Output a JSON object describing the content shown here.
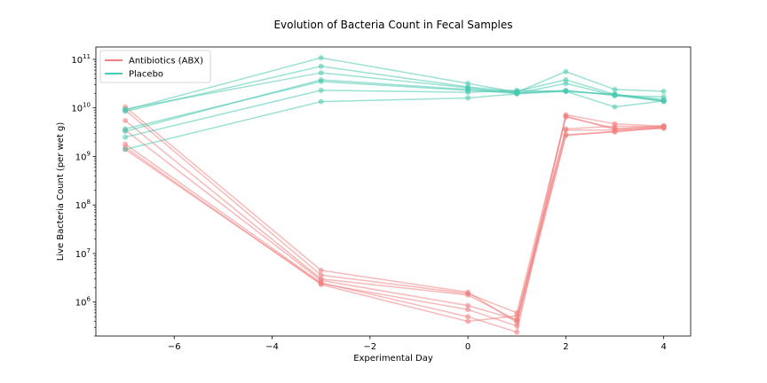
{
  "chart_data": {
    "type": "line",
    "title": "Evolution of Bacteria Count in Fecal Samples",
    "xlabel": "Experimental Day",
    "ylabel": "Live Bacteria Count (per wet g)",
    "xlim": [
      -7.6,
      4.55
    ],
    "ylim": [
      200000,
      180000000000
    ],
    "yscale": "log",
    "x_ticks": [
      {
        "value": -6,
        "label": "−6"
      },
      {
        "value": -4,
        "label": "−4"
      },
      {
        "value": -2,
        "label": "−2"
      },
      {
        "value": 0,
        "label": "0"
      },
      {
        "value": 2,
        "label": "2"
      },
      {
        "value": 4,
        "label": "4"
      }
    ],
    "y_ticks": [
      {
        "value": 1000000,
        "base": "10",
        "exp": "6"
      },
      {
        "value": 10000000,
        "base": "10",
        "exp": "7"
      },
      {
        "value": 100000000,
        "base": "10",
        "exp": "8"
      },
      {
        "value": 1000000000,
        "base": "10",
        "exp": "9"
      },
      {
        "value": 10000000000,
        "base": "10",
        "exp": "10"
      },
      {
        "value": 100000000000,
        "base": "10",
        "exp": "11"
      }
    ],
    "grid": false,
    "legend": {
      "placement": "top-left",
      "entries": [
        {
          "label": "Antibiotics (ABX)",
          "color": "#f08080"
        },
        {
          "label": "Placebo",
          "color": "#48c9b0"
        }
      ]
    },
    "x": [
      -7,
      -3,
      0,
      1,
      2,
      3,
      4
    ],
    "series": [
      {
        "group": "Antibiotics (ABX)",
        "color": "#f08080",
        "values": [
          10500000000,
          4500000,
          1600000,
          380000,
          7200000000,
          4700000000,
          4200000000
        ]
      },
      {
        "group": "Antibiotics (ABX)",
        "color": "#f08080",
        "values": [
          9000000000,
          3600000,
          1500000,
          600000,
          6500000000,
          3800000000,
          4000000000
        ]
      },
      {
        "group": "Antibiotics (ABX)",
        "color": "#f08080",
        "values": [
          5500000000,
          3000000,
          1400000,
          420000,
          3700000000,
          4200000000,
          4100000000
        ]
      },
      {
        "group": "Antibiotics (ABX)",
        "color": "#f08080",
        "values": [
          3500000000,
          2800000,
          850000,
          430000,
          2800000000,
          3200000000,
          3900000000
        ]
      },
      {
        "group": "Antibiotics (ABX)",
        "color": "#f08080",
        "values": [
          1800000000,
          2500000,
          500000,
          240000,
          6800000000,
          3600000000,
          4300000000
        ]
      },
      {
        "group": "Antibiotics (ABX)",
        "color": "#f08080",
        "values": [
          1550000000,
          2300000,
          400000,
          520000,
          3500000000,
          3500000000,
          3800000000
        ]
      },
      {
        "group": "Antibiotics (ABX)",
        "color": "#f08080",
        "values": [
          1400000000,
          2400000,
          700000,
          320000,
          2700000000,
          3300000000,
          4000000000
        ]
      },
      {
        "group": "Placebo",
        "color": "#48c9b0",
        "values": [
          9000000000,
          108000000000,
          32000000000,
          21000000000,
          56000000000,
          24000000000,
          22000000000
        ]
      },
      {
        "group": "Placebo",
        "color": "#48c9b0",
        "values": [
          8500000000,
          72000000000,
          27000000000,
          22000000000,
          38000000000,
          19000000000,
          15000000000
        ]
      },
      {
        "group": "Placebo",
        "color": "#48c9b0",
        "values": [
          9500000000,
          53000000000,
          26000000000,
          20000000000,
          32000000000,
          18000000000,
          14000000000
        ]
      },
      {
        "group": "Placebo",
        "color": "#48c9b0",
        "values": [
          3300000000,
          38000000000,
          24000000000,
          21000000000,
          22000000000,
          10500000000,
          14000000000
        ]
      },
      {
        "group": "Placebo",
        "color": "#48c9b0",
        "values": [
          3700000000,
          35000000000,
          23000000000,
          20000000000,
          23000000000,
          18000000000,
          17000000000
        ]
      },
      {
        "group": "Placebo",
        "color": "#48c9b0",
        "values": [
          2500000000,
          23000000000,
          21000000000,
          23000000000,
          22000000000,
          19000000000,
          13500000000
        ]
      },
      {
        "group": "Placebo",
        "color": "#48c9b0",
        "values": [
          1400000000,
          13500000000,
          16000000000,
          19500000000,
          22000000000,
          19000000000,
          14000000000
        ]
      }
    ]
  }
}
